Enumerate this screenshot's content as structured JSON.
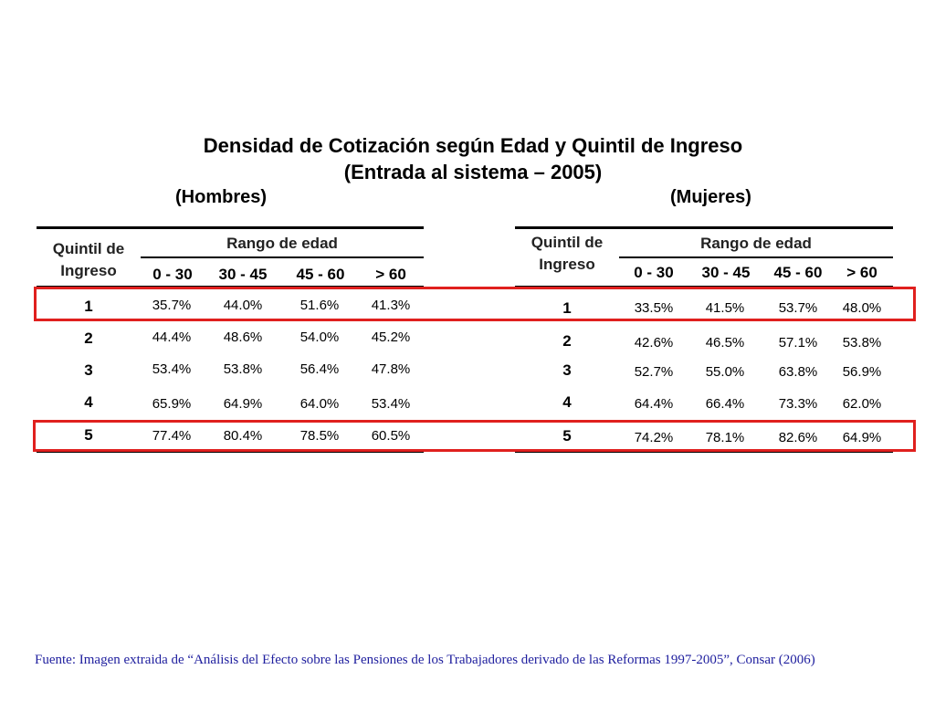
{
  "title": {
    "line1": "Densidad de Cotización según Edad y Quintil de Ingreso",
    "line2": "(Entrada al sistema – 2005)"
  },
  "men": {
    "subtitle": "(Hombres)",
    "quintil_header": [
      "Quintil de",
      "Ingreso"
    ],
    "rango_header": "Rango de edad",
    "age_ranges": [
      "0 - 30",
      "30 - 45",
      "45 - 60",
      "> 60"
    ],
    "rows": [
      {
        "quintil": "1",
        "values": [
          "35.7%",
          "44.0%",
          "51.6%",
          "41.3%"
        ]
      },
      {
        "quintil": "2",
        "values": [
          "44.4%",
          "48.6%",
          "54.0%",
          "45.2%"
        ]
      },
      {
        "quintil": "3",
        "values": [
          "53.4%",
          "53.8%",
          "56.4%",
          "47.8%"
        ]
      },
      {
        "quintil": "4",
        "values": [
          "65.9%",
          "64.9%",
          "64.0%",
          "53.4%"
        ]
      },
      {
        "quintil": "5",
        "values": [
          "77.4%",
          "80.4%",
          "78.5%",
          "60.5%"
        ]
      }
    ]
  },
  "women": {
    "subtitle": "(Mujeres)",
    "quintil_header": [
      "Quintil de",
      "Ingreso"
    ],
    "rango_header": "Rango de edad",
    "age_ranges": [
      "0 - 30",
      "30 - 45",
      "45 - 60",
      "> 60"
    ],
    "rows": [
      {
        "quintil": "1",
        "values": [
          "33.5%",
          "41.5%",
          "53.7%",
          "48.0%"
        ]
      },
      {
        "quintil": "2",
        "values": [
          "42.6%",
          "46.5%",
          "57.1%",
          "53.8%"
        ]
      },
      {
        "quintil": "3",
        "values": [
          "52.7%",
          "55.0%",
          "63.8%",
          "56.9%"
        ]
      },
      {
        "quintil": "4",
        "values": [
          "64.4%",
          "66.4%",
          "73.3%",
          "62.0%"
        ]
      },
      {
        "quintil": "5",
        "values": [
          "74.2%",
          "78.1%",
          "82.6%",
          "64.9%"
        ]
      }
    ]
  },
  "highlight_color": "#e0201e",
  "source": "Fuente: Imagen extraida de “Análisis del Efecto sobre las Pensiones de los Trabajadores derivado de las Reformas 1997-2005”, Consar (2006)"
}
